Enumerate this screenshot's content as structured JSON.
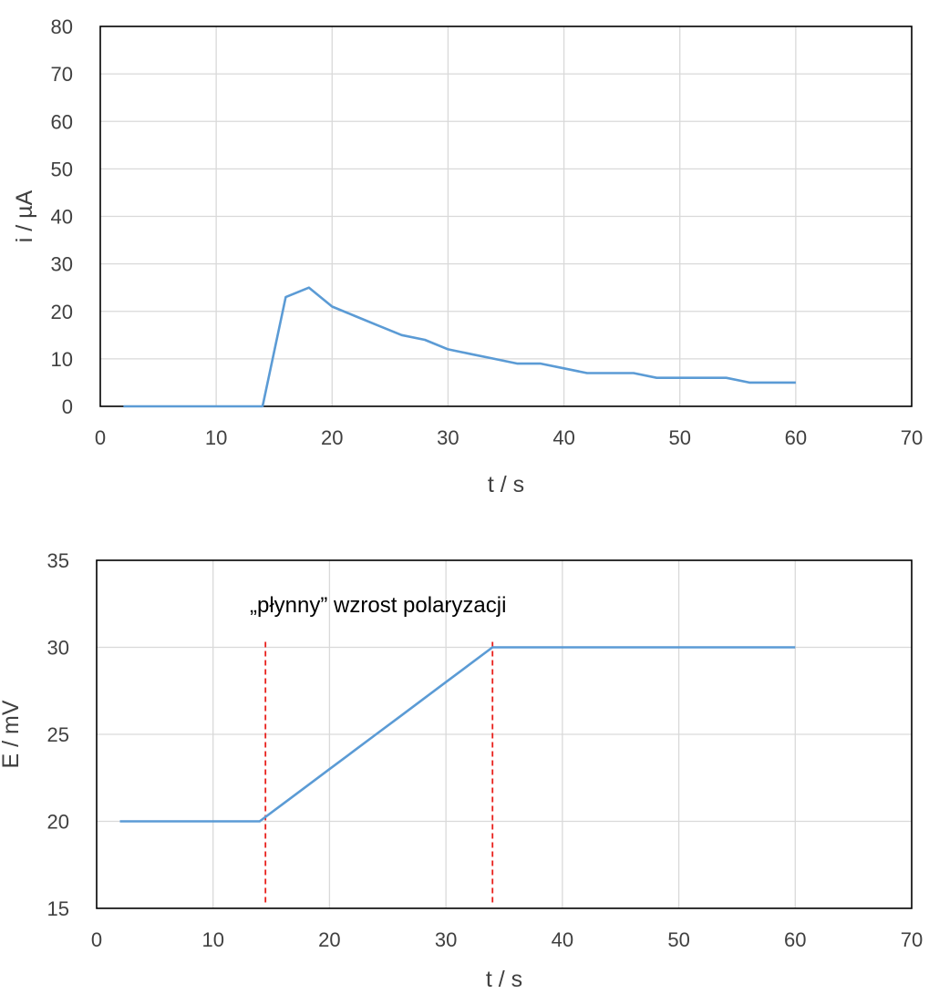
{
  "colors": {
    "series": "#5b9bd5",
    "grid": "#d9d9d9",
    "frame": "#000000",
    "marker_line": "#e8201c",
    "text": "#404040"
  },
  "chart_data": [
    {
      "type": "line",
      "title": "",
      "xlabel": "t / s",
      "ylabel": "i / µA",
      "xlim": [
        0,
        70
      ],
      "ylim": [
        0,
        80
      ],
      "xticks": [
        0,
        10,
        20,
        30,
        40,
        50,
        60,
        70
      ],
      "yticks": [
        0,
        10,
        20,
        30,
        40,
        50,
        60,
        70,
        80
      ],
      "grid": true,
      "series": [
        {
          "x": [
            2,
            4,
            6,
            8,
            10,
            12,
            14,
            16,
            18,
            20,
            22,
            24,
            26,
            28,
            30,
            32,
            34,
            36,
            38,
            40,
            42,
            44,
            46,
            48,
            50,
            52,
            54,
            56,
            58,
            60
          ],
          "y": [
            0,
            0,
            0,
            0,
            0,
            0,
            0,
            23,
            25,
            21,
            19,
            17,
            15,
            14,
            12,
            11,
            10,
            9,
            9,
            8,
            7,
            7,
            7,
            6,
            6,
            6,
            6,
            5,
            5,
            5
          ]
        }
      ]
    },
    {
      "type": "line",
      "title": "",
      "xlabel": "t / s",
      "ylabel": "E / mV",
      "xlim": [
        0,
        70
      ],
      "ylim": [
        15,
        35
      ],
      "xticks": [
        0,
        10,
        20,
        30,
        40,
        50,
        60,
        70
      ],
      "yticks": [
        15,
        20,
        25,
        30,
        35
      ],
      "grid": true,
      "series": [
        {
          "x": [
            2,
            4,
            6,
            8,
            10,
            12,
            14,
            16,
            18,
            20,
            22,
            24,
            26,
            28,
            30,
            32,
            34,
            36,
            38,
            40,
            42,
            44,
            46,
            48,
            50,
            52,
            54,
            56,
            58,
            60
          ],
          "y": [
            20,
            20,
            20,
            20,
            20,
            20,
            20,
            21,
            22,
            23,
            24,
            25,
            26,
            27,
            28,
            29,
            30,
            30,
            30,
            30,
            30,
            30,
            30,
            30,
            30,
            30,
            30,
            30,
            30,
            30
          ]
        }
      ],
      "vlines": [
        14.5,
        34
      ],
      "annotation": "„płynny” wzrost polaryzacji"
    }
  ]
}
